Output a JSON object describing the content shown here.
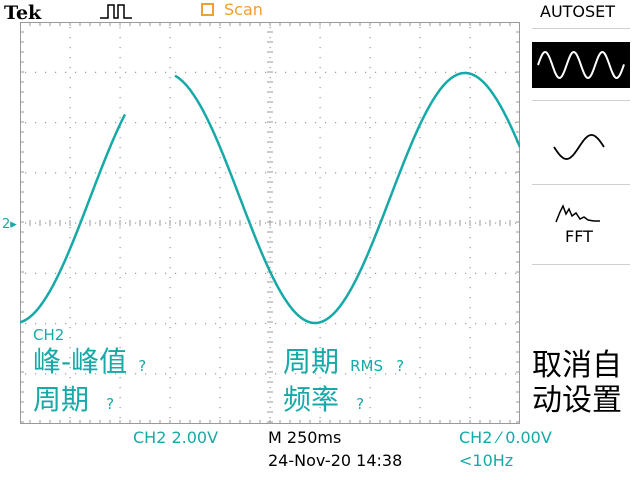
{
  "header": {
    "brand": "Tek",
    "mode_label": "Scan",
    "menu_title": "AUTOSET"
  },
  "channel_marker": "2",
  "side_menu": {
    "fft_label": "FFT",
    "cancel_label": "取消自动设置"
  },
  "measurements": {
    "channel": "CH2",
    "peak_to_peak_label": "峰-峰值",
    "peak_to_peak_value": "?",
    "period_left_label": "周期",
    "period_left_value": "?",
    "period_rms_label": "周期",
    "rms_unit": "RMS",
    "period_rms_value": "?",
    "frequency_label": "频率",
    "frequency_value": "?"
  },
  "status_bar": {
    "ch_scale": "CH2  2.00V",
    "timebase": "M 250ms",
    "trigger": "CH2 ⁄ 0.00V",
    "datetime": "24-Nov-20 14:38",
    "trigger_freq": "<10Hz"
  },
  "colors": {
    "trace": "#17a8a8",
    "scan": "#f0a030",
    "grid": "#9a9a9a"
  }
}
